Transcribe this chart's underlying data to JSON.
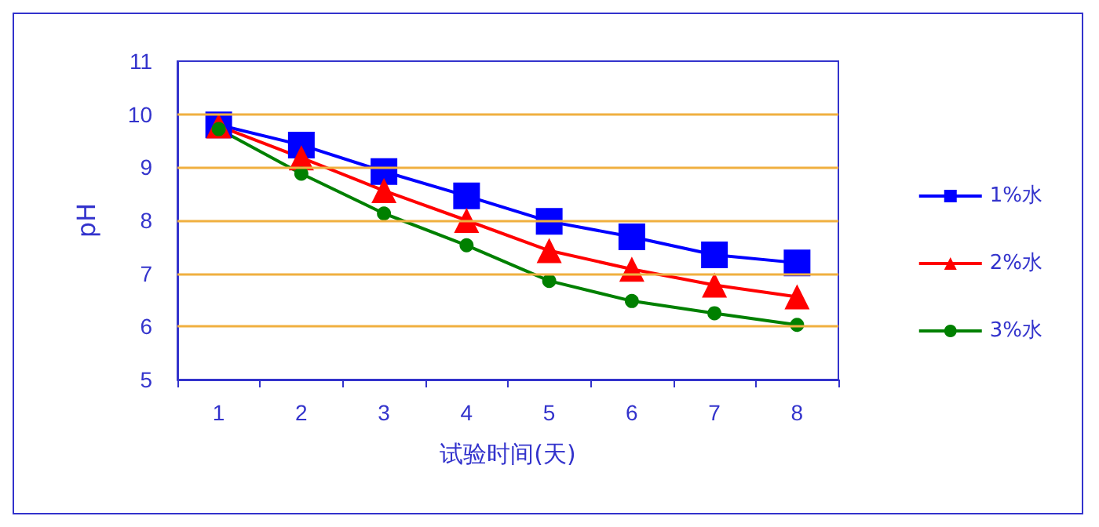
{
  "chart_data": {
    "type": "line",
    "xlabel": "试验时间(天)",
    "ylabel": "pH",
    "categories": [
      "1",
      "2",
      "3",
      "4",
      "5",
      "6",
      "7",
      "8"
    ],
    "series": [
      {
        "name": "1%水",
        "color": "#0000ff",
        "marker": "square",
        "values": [
          9.8,
          9.42,
          8.92,
          8.46,
          7.98,
          7.69,
          7.35,
          7.2
        ]
      },
      {
        "name": "2%水",
        "color": "#ff0000",
        "marker": "triangle",
        "values": [
          9.78,
          9.18,
          8.56,
          8.0,
          7.43,
          7.08,
          6.78,
          6.56
        ]
      },
      {
        "name": "3%水",
        "color": "#008000",
        "marker": "circle",
        "values": [
          9.72,
          8.88,
          8.13,
          7.53,
          6.86,
          6.48,
          6.25,
          6.03
        ]
      }
    ],
    "ylim": [
      5,
      11
    ],
    "yticks": [
      5,
      6,
      7,
      8,
      9,
      10,
      11
    ],
    "grid": "y",
    "legend": "right"
  }
}
